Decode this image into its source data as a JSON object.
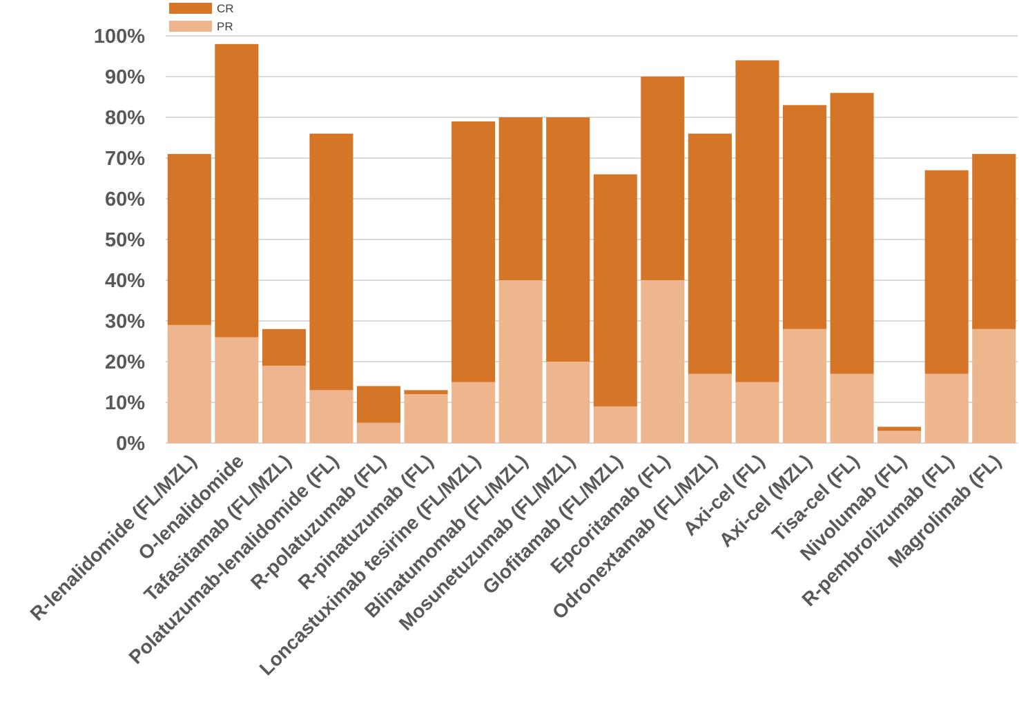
{
  "chart_data": {
    "type": "bar",
    "stacked": true,
    "title": "",
    "xlabel": "",
    "ylabel": "",
    "ylim": [
      0,
      100
    ],
    "ytick_values": [
      0,
      10,
      20,
      30,
      40,
      50,
      60,
      70,
      80,
      90,
      100
    ],
    "ytick_labels": [
      "0%",
      "10%",
      "20%",
      "30%",
      "40%",
      "50%",
      "60%",
      "70%",
      "80%",
      "90%",
      "100%"
    ],
    "grid": true,
    "legend_position": "top-left",
    "categories": [
      "R-lenalidomide (FL/MZL)",
      "O-lenalidomide",
      "Tafasitamab (FL/MZL)",
      "Polatuzumab-lenalidomide (FL)",
      "R-polatuzumab (FL)",
      "R-pinatuzumab (FL)",
      "Loncastuximab tesirine (FL/MZL)",
      "Blinatumomab (FL/MZL)",
      "Mosunetuzumab (FL/MZL)",
      "Glofitamab (FL/MZL)",
      "Epcoritamab (FL)",
      "Odronextamab (FL/MZL)",
      "Axi-cel (FL)",
      "Axi-cel (MZL)",
      "Tisa-cel (FL)",
      "Nivolumab (FL)",
      "R-pembrolizumab (FL)",
      "Magrolimab (FL)"
    ],
    "series": [
      {
        "name": "PR",
        "color": "#EDB68E",
        "values": [
          29,
          26,
          19,
          13,
          5,
          12,
          15,
          40,
          20,
          9,
          40,
          17,
          15,
          28,
          17,
          3,
          17,
          28
        ]
      },
      {
        "name": "CR",
        "color": "#D47528",
        "values": [
          42,
          72,
          9,
          63,
          9,
          1,
          64,
          40,
          60,
          57,
          50,
          59,
          79,
          55,
          69,
          1,
          50,
          43
        ]
      }
    ],
    "legend": [
      {
        "name": "CR",
        "color": "#D47528"
      },
      {
        "name": "PR",
        "color": "#EDB68E"
      }
    ]
  }
}
